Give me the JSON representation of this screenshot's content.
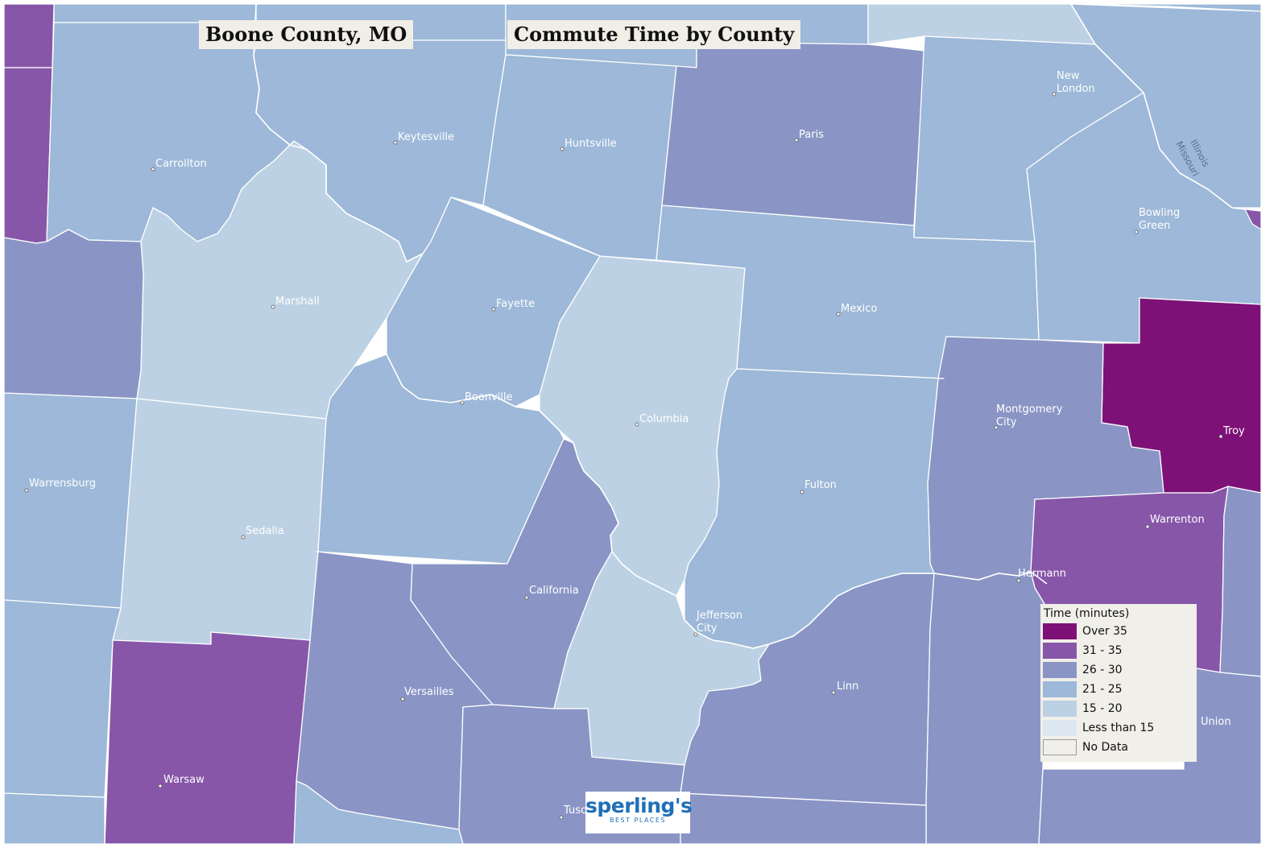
{
  "title": "Boone County, MO",
  "subtitle": "Commute Time by County",
  "colors": {
    "over_35": "#7d1178",
    "c31_35": "#8756a8",
    "c26_30": "#8a95c5",
    "c21_25": "#9db8d8",
    "c15_20": "#bdd1e4",
    "lt_15": "#dce7f1",
    "no_data": "#f1efe9"
  },
  "legend": {
    "title": "Time (minutes)",
    "items": [
      {
        "label": "Over 35",
        "color": "#7d1178"
      },
      {
        "label": "31 - 35",
        "color": "#8756a8"
      },
      {
        "label": "26 - 30",
        "color": "#8a95c5"
      },
      {
        "label": "21 - 25",
        "color": "#9db8d8"
      },
      {
        "label": "15 - 20",
        "color": "#bdd1e4"
      },
      {
        "label": "Less than 15",
        "color": "#dce7f1"
      },
      {
        "label": "No Data",
        "color": "#f1efe9"
      }
    ]
  },
  "cities": {
    "carrollton": "Carrollton",
    "keytesville": "Keytesville",
    "huntsville": "Huntsville",
    "paris": "Paris",
    "new_london": [
      "New",
      "London"
    ],
    "bowling_green": [
      "Bowling",
      "Green"
    ],
    "marshall": "Marshall",
    "fayette": "Fayette",
    "boonville": "Boonville",
    "columbia": "Columbia",
    "mexico": "Mexico",
    "montgomery_city": [
      "Montgomery",
      "City"
    ],
    "troy": "Troy",
    "warrensburg": "Warrensburg",
    "sedalia": "Sedalia",
    "fulton": "Fulton",
    "warrenton": "Warrenton",
    "hermann": "Hermann",
    "california": "California",
    "jefferson_city": [
      "Jefferson",
      "City"
    ],
    "versailles": "Versailles",
    "linn": "Linn",
    "union": "Union",
    "warsaw": "Warsaw",
    "tuscumbia": "Tusc"
  },
  "rivers": {
    "illinois": "Illinois",
    "missouri": "Missouri"
  },
  "logo": {
    "main": "sperling's",
    "sub": "BEST PLACES"
  }
}
